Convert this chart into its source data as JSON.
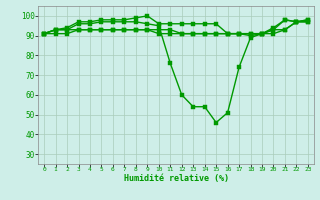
{
  "xlabel": "Humidité relative (%)",
  "xlim": [
    -0.5,
    23.5
  ],
  "ylim": [
    25,
    105
  ],
  "yticks": [
    30,
    40,
    50,
    60,
    70,
    80,
    90,
    100
  ],
  "xticks": [
    0,
    1,
    2,
    3,
    4,
    5,
    6,
    7,
    8,
    9,
    10,
    11,
    12,
    13,
    14,
    15,
    16,
    17,
    18,
    19,
    20,
    21,
    22,
    23
  ],
  "background_color": "#ceeee8",
  "grid_color": "#aaccbb",
  "line_color": "#009900",
  "markersize": 2.5,
  "linewidth": 1.0,
  "series": [
    [
      91,
      93,
      93,
      96,
      96,
      97,
      97,
      97,
      97,
      96,
      95,
      76,
      60,
      54,
      54,
      46,
      51,
      74,
      89,
      91,
      93,
      98,
      97,
      98
    ],
    [
      91,
      93,
      93,
      93,
      93,
      93,
      93,
      93,
      93,
      93,
      93,
      93,
      91,
      91,
      91,
      91,
      91,
      91,
      91,
      91,
      93,
      93,
      97,
      97
    ],
    [
      91,
      91,
      91,
      93,
      93,
      93,
      93,
      93,
      93,
      93,
      91,
      91,
      91,
      91,
      91,
      91,
      91,
      91,
      91,
      91,
      91,
      93,
      97,
      97
    ],
    [
      91,
      93,
      94,
      97,
      97,
      98,
      98,
      98,
      99,
      100,
      96,
      96,
      96,
      96,
      96,
      96,
      91,
      91,
      90,
      91,
      94,
      98,
      97,
      98
    ]
  ]
}
